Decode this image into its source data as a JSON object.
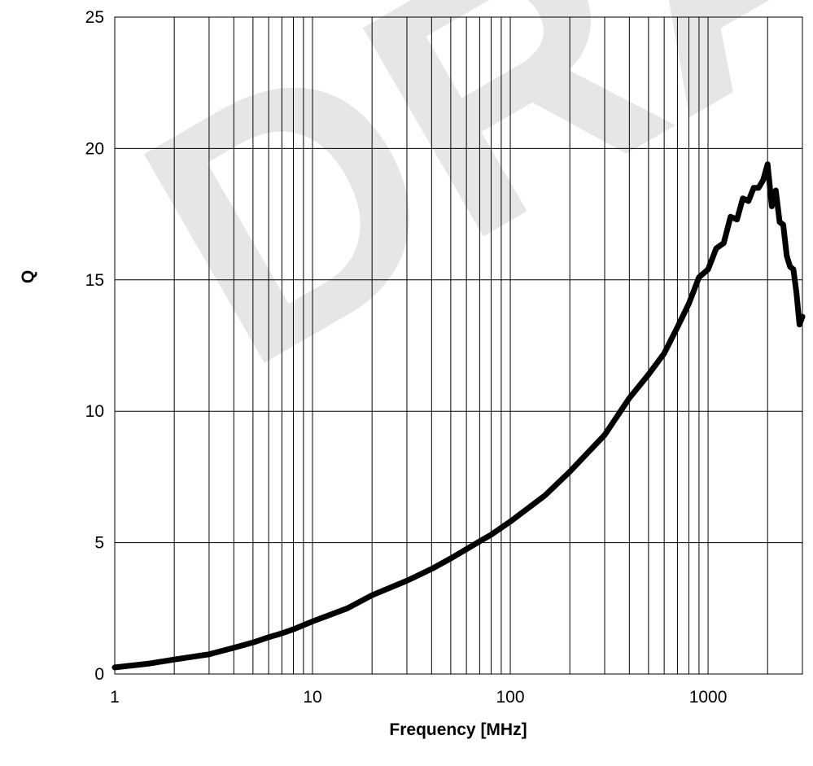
{
  "chart_data": {
    "type": "line",
    "xlabel": "Frequency [MHz]",
    "ylabel": "Q",
    "x_scale": "log",
    "xlim": [
      1,
      3000
    ],
    "ylim": [
      0,
      25
    ],
    "x_ticks": [
      1,
      10,
      100,
      1000
    ],
    "x_tick_labels": [
      "1",
      "10",
      "100",
      "1000"
    ],
    "y_ticks": [
      0,
      5,
      10,
      15,
      20,
      25
    ],
    "y_tick_labels": [
      "0",
      "5",
      "10",
      "15",
      "20",
      "25"
    ],
    "grid": true,
    "line_color": "#000000",
    "series": [
      {
        "x": [
          1,
          1.5,
          2,
          3,
          4,
          5,
          6,
          7,
          8,
          10,
          15,
          20,
          30,
          40,
          50,
          60,
          70,
          80,
          100,
          150,
          200,
          300,
          400,
          500,
          600,
          700,
          800,
          900,
          1000,
          1100,
          1200,
          1300,
          1400,
          1500,
          1600,
          1700,
          1800,
          1900,
          2000,
          2100,
          2200,
          2300,
          2400,
          2500,
          2600,
          2700,
          2800,
          2900,
          3000
        ],
        "y": [
          0.25,
          0.4,
          0.55,
          0.75,
          1.0,
          1.2,
          1.4,
          1.55,
          1.7,
          2.0,
          2.5,
          3.0,
          3.55,
          4.0,
          4.4,
          4.75,
          5.05,
          5.3,
          5.8,
          6.8,
          7.7,
          9.1,
          10.5,
          11.4,
          12.2,
          13.2,
          14.1,
          15.1,
          15.4,
          16.2,
          16.4,
          17.4,
          17.3,
          18.1,
          18.0,
          18.5,
          18.5,
          18.8,
          19.4,
          17.8,
          18.4,
          17.2,
          17.1,
          15.9,
          15.5,
          15.4,
          14.5,
          13.3,
          13.6
        ]
      }
    ]
  },
  "watermark": "DRAFT"
}
